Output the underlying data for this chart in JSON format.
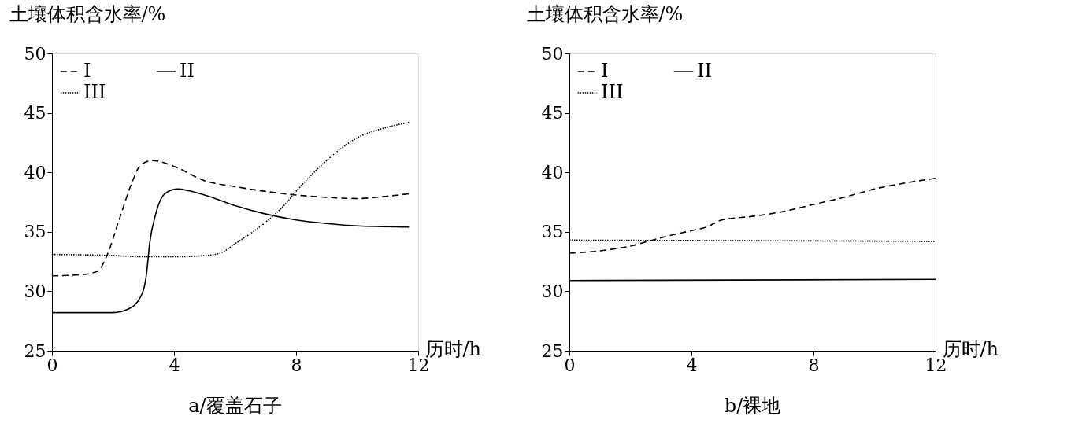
{
  "chart_data": [
    {
      "type": "line",
      "title": "a/覆盖石子",
      "xlabel": "历时/h",
      "ylabel": "土壤体积含水率/%",
      "xlim": [
        0,
        12
      ],
      "xticks": [
        0,
        4,
        8,
        12
      ],
      "ylim": [
        25,
        50
      ],
      "yticks": [
        25,
        30,
        35,
        40,
        45,
        50
      ],
      "grid": false,
      "legend": "top left",
      "marker": "none",
      "series": [
        {
          "name": "I",
          "color": "#000000",
          "line_style": "dashed",
          "x": [
            0,
            1,
            1.5,
            1.8,
            2.2,
            2.6,
            2.9,
            3.3,
            4,
            5,
            6,
            7,
            8,
            9,
            10,
            11,
            11.7
          ],
          "values": [
            31.3,
            31.4,
            31.7,
            33,
            36,
            39,
            40.6,
            41.0,
            40.5,
            39.3,
            38.8,
            38.4,
            38.1,
            37.9,
            37.8,
            38,
            38.2
          ]
        },
        {
          "name": "II",
          "color": "#000000",
          "line_style": "solid",
          "x": [
            0,
            2,
            2.5,
            2.9,
            3.1,
            3.2,
            3.4,
            3.7,
            4.1,
            5,
            6,
            7,
            8,
            9,
            10,
            11.7
          ],
          "values": [
            28.2,
            28.2,
            28.5,
            29.5,
            31.5,
            34,
            36.5,
            38.2,
            38.6,
            38.1,
            37.2,
            36.5,
            36,
            35.7,
            35.5,
            35.4
          ]
        },
        {
          "name": "III",
          "color": "#000000",
          "line_style": "dotted",
          "x": [
            0,
            2,
            3,
            4,
            5,
            5.5,
            6,
            7,
            7.6,
            8,
            9,
            10,
            11,
            11.7
          ],
          "values": [
            33.1,
            33,
            32.9,
            32.9,
            33,
            33.2,
            34,
            35.8,
            37.2,
            38.4,
            41,
            42.9,
            43.8,
            44.2
          ]
        }
      ]
    },
    {
      "type": "line",
      "title": "b/裸地",
      "xlabel": "历时/h",
      "ylabel": "土壤体积含水率/%",
      "xlim": [
        0,
        12
      ],
      "xticks": [
        0,
        4,
        8,
        12
      ],
      "ylim": [
        25,
        50
      ],
      "yticks": [
        25,
        30,
        35,
        40,
        45,
        50
      ],
      "grid": false,
      "legend": "top left",
      "marker": "none",
      "series": [
        {
          "name": "I",
          "color": "#000000",
          "line_style": "dashed",
          "x": [
            0,
            1,
            2,
            3,
            4,
            4.5,
            5,
            6,
            7,
            8,
            9,
            10,
            11,
            12
          ],
          "values": [
            33.2,
            33.4,
            33.8,
            34.5,
            35.1,
            35.4,
            36,
            36.3,
            36.7,
            37.3,
            37.9,
            38.6,
            39.1,
            39.5
          ]
        },
        {
          "name": "II",
          "color": "#000000",
          "line_style": "solid",
          "x": [
            0,
            12
          ],
          "values": [
            30.9,
            31.0
          ]
        },
        {
          "name": "III",
          "color": "#000000",
          "line_style": "dotted",
          "x": [
            0,
            12
          ],
          "values": [
            34.3,
            34.2
          ]
        }
      ]
    }
  ]
}
